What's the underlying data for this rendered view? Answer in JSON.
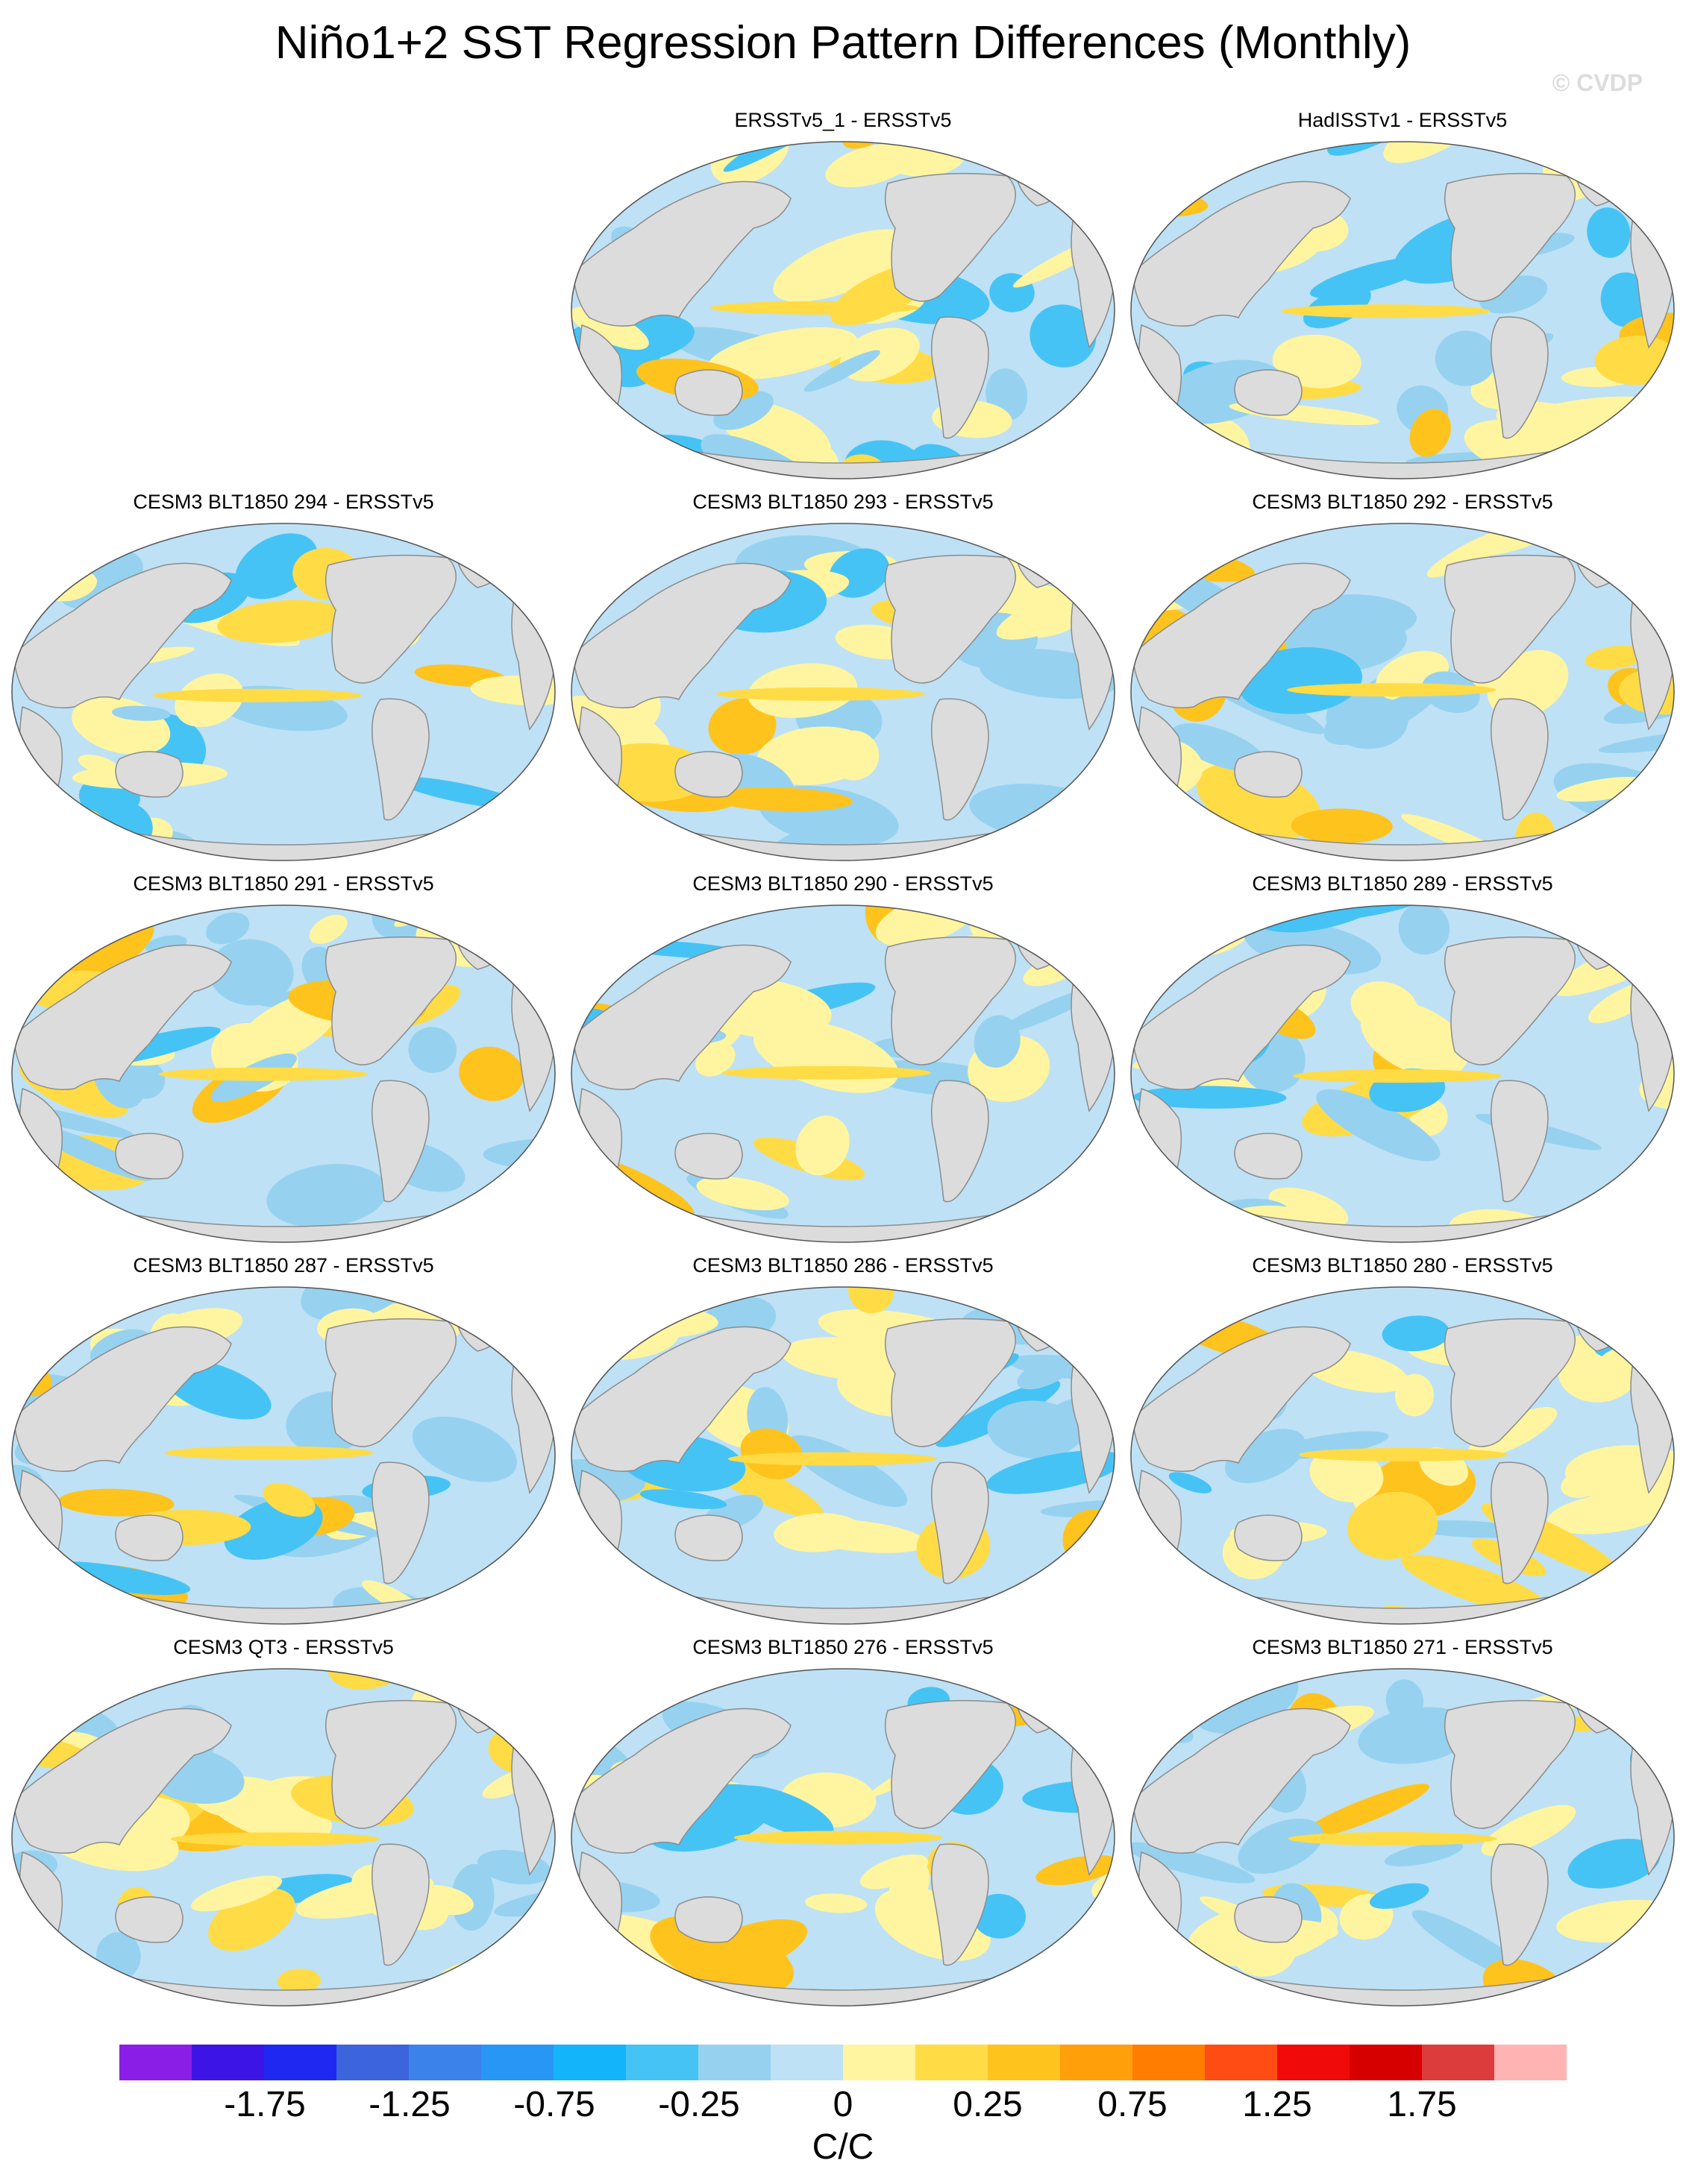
{
  "figure": {
    "title": "Niño1+2 SST Regression Pattern Differences (Monthly)",
    "watermark": "© CVDP"
  },
  "panels": [
    {
      "title": "ERSSTv5_1 - ERSSTv5",
      "seed": 11
    },
    {
      "title": "HadISSTv1 - ERSSTv5",
      "seed": 23
    },
    {
      "title": "CESM3 BLT1850 294 - ERSSTv5",
      "seed": 37
    },
    {
      "title": "CESM3 BLT1850 293 - ERSSTv5",
      "seed": 41
    },
    {
      "title": "CESM3 BLT1850 292 - ERSSTv5",
      "seed": 53
    },
    {
      "title": "CESM3 BLT1850 291 - ERSSTv5",
      "seed": 67
    },
    {
      "title": "CESM3 BLT1850 290 - ERSSTv5",
      "seed": 71
    },
    {
      "title": "CESM3 BLT1850 289 - ERSSTv5",
      "seed": 83
    },
    {
      "title": "CESM3 BLT1850 287 - ERSSTv5",
      "seed": 97
    },
    {
      "title": "CESM3 BLT1850 286 - ERSSTv5",
      "seed": 101
    },
    {
      "title": "CESM3 BLT1850 280 - ERSSTv5",
      "seed": 113
    },
    {
      "title": "CESM3 QT3 - ERSSTv5",
      "seed": 127
    },
    {
      "title": "CESM3 BLT1850 276 - ERSSTv5",
      "seed": 131
    },
    {
      "title": "CESM3 BLT1850 271 - ERSSTv5",
      "seed": 149
    }
  ],
  "colorbar": {
    "unit": "C/C",
    "tick_labels": [
      "-1.75",
      "-1.25",
      "-0.75",
      "-0.25",
      "0",
      "0.25",
      "0.75",
      "1.25",
      "1.75"
    ],
    "colors": [
      "#8a1ee6",
      "#3c14e6",
      "#1e28f0",
      "#3c64dc",
      "#3c82eb",
      "#2896f5",
      "#14b4fa",
      "#46c3f5",
      "#96d2f0",
      "#bee1f5",
      "#fff5a0",
      "#ffdc46",
      "#ffc31e",
      "#ffa00a",
      "#ff7d00",
      "#ff4b14",
      "#f00a0a",
      "#d70000",
      "#dc3c3c",
      "#ffb4b4"
    ]
  },
  "map_style": {
    "land_color": "#dcdcdc",
    "coast_color": "#8c8c8c",
    "outline_color": "#555555"
  }
}
